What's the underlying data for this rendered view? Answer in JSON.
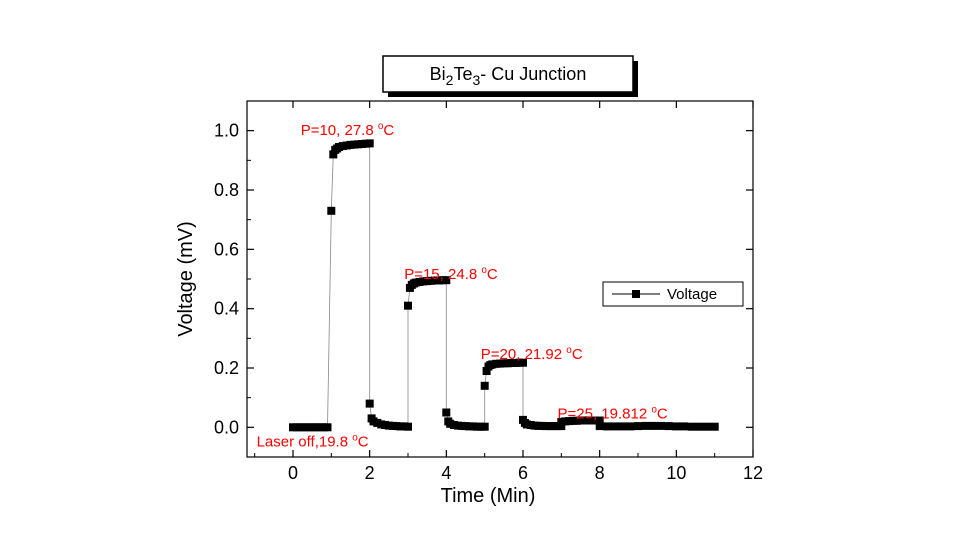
{
  "chart_data": {
    "type": "scatter",
    "title_parts": {
      "a": "Bi",
      "a_sub": "2",
      "b": "Te",
      "b_sub": "3",
      "c": "- Cu Junction"
    },
    "xlabel": "Time (Min)",
    "ylabel": "Voltage (mV)",
    "xlim": [
      -1.2,
      12
    ],
    "ylim": [
      -0.1,
      1.1
    ],
    "x_ticks": [
      0,
      2,
      4,
      6,
      8,
      10,
      12
    ],
    "x_tick_labels": [
      "0",
      "2",
      "4",
      "6",
      "8",
      "10",
      "12"
    ],
    "y_ticks": [
      0.0,
      0.2,
      0.4,
      0.6,
      0.8,
      1.0
    ],
    "y_tick_labels": [
      "0.0",
      "0.2",
      "0.4",
      "0.6",
      "0.8",
      "1.0"
    ],
    "grid": false,
    "legend_position": "right",
    "series": [
      {
        "name": "Voltage",
        "color": "#000000",
        "points": [
          [
            0.0,
            0.0
          ],
          [
            0.1,
            0.0
          ],
          [
            0.2,
            0.0
          ],
          [
            0.3,
            0.0
          ],
          [
            0.4,
            0.0
          ],
          [
            0.5,
            0.0
          ],
          [
            0.6,
            0.0
          ],
          [
            0.7,
            0.0
          ],
          [
            0.8,
            0.0
          ],
          [
            0.9,
            0.0
          ],
          [
            1.0,
            0.73
          ],
          [
            1.05,
            0.92
          ],
          [
            1.1,
            0.935
          ],
          [
            1.15,
            0.94
          ],
          [
            1.2,
            0.945
          ],
          [
            1.3,
            0.948
          ],
          [
            1.4,
            0.95
          ],
          [
            1.5,
            0.952
          ],
          [
            1.6,
            0.953
          ],
          [
            1.7,
            0.954
          ],
          [
            1.8,
            0.955
          ],
          [
            1.9,
            0.956
          ],
          [
            2.0,
            0.957
          ],
          [
            2.0,
            0.08
          ],
          [
            2.05,
            0.03
          ],
          [
            2.1,
            0.02
          ],
          [
            2.2,
            0.015
          ],
          [
            2.3,
            0.01
          ],
          [
            2.4,
            0.008
          ],
          [
            2.5,
            0.006
          ],
          [
            2.6,
            0.005
          ],
          [
            2.7,
            0.004
          ],
          [
            2.8,
            0.003
          ],
          [
            2.9,
            0.003
          ],
          [
            3.0,
            0.002
          ],
          [
            3.0,
            0.41
          ],
          [
            3.05,
            0.47
          ],
          [
            3.1,
            0.48
          ],
          [
            3.15,
            0.485
          ],
          [
            3.2,
            0.488
          ],
          [
            3.3,
            0.49
          ],
          [
            3.4,
            0.492
          ],
          [
            3.5,
            0.493
          ],
          [
            3.6,
            0.494
          ],
          [
            3.7,
            0.495
          ],
          [
            3.8,
            0.495
          ],
          [
            3.9,
            0.496
          ],
          [
            4.0,
            0.496
          ],
          [
            4.0,
            0.05
          ],
          [
            4.05,
            0.02
          ],
          [
            4.1,
            0.012
          ],
          [
            4.2,
            0.008
          ],
          [
            4.3,
            0.006
          ],
          [
            4.4,
            0.005
          ],
          [
            4.5,
            0.004
          ],
          [
            4.6,
            0.003
          ],
          [
            4.7,
            0.003
          ],
          [
            4.8,
            0.002
          ],
          [
            4.9,
            0.002
          ],
          [
            5.0,
            0.002
          ],
          [
            5.0,
            0.14
          ],
          [
            5.05,
            0.19
          ],
          [
            5.1,
            0.205
          ],
          [
            5.15,
            0.21
          ],
          [
            5.2,
            0.212
          ],
          [
            5.3,
            0.214
          ],
          [
            5.4,
            0.215
          ],
          [
            5.5,
            0.216
          ],
          [
            5.6,
            0.216
          ],
          [
            5.7,
            0.217
          ],
          [
            5.8,
            0.217
          ],
          [
            5.9,
            0.218
          ],
          [
            6.0,
            0.218
          ],
          [
            6.0,
            0.025
          ],
          [
            6.05,
            0.015
          ],
          [
            6.1,
            0.01
          ],
          [
            6.2,
            0.008
          ],
          [
            6.3,
            0.006
          ],
          [
            6.4,
            0.005
          ],
          [
            6.5,
            0.005
          ],
          [
            6.6,
            0.004
          ],
          [
            6.7,
            0.004
          ],
          [
            6.8,
            0.004
          ],
          [
            6.9,
            0.004
          ],
          [
            7.0,
            0.004
          ],
          [
            7.0,
            0.018
          ],
          [
            7.1,
            0.02
          ],
          [
            7.2,
            0.021
          ],
          [
            7.3,
            0.022
          ],
          [
            7.4,
            0.022
          ],
          [
            7.5,
            0.023
          ],
          [
            7.6,
            0.023
          ],
          [
            7.7,
            0.023
          ],
          [
            7.8,
            0.023
          ],
          [
            7.9,
            0.023
          ],
          [
            8.0,
            0.023
          ],
          [
            8.0,
            0.004
          ],
          [
            8.2,
            0.003
          ],
          [
            8.4,
            0.003
          ],
          [
            8.6,
            0.003
          ],
          [
            8.8,
            0.003
          ],
          [
            9.0,
            0.004
          ],
          [
            9.2,
            0.005
          ],
          [
            9.4,
            0.005
          ],
          [
            9.6,
            0.005
          ],
          [
            9.8,
            0.004
          ],
          [
            10.0,
            0.003
          ],
          [
            10.2,
            0.003
          ],
          [
            10.4,
            0.002
          ],
          [
            10.6,
            0.002
          ],
          [
            10.8,
            0.002
          ],
          [
            11.0,
            0.002
          ]
        ]
      }
    ],
    "annotations": [
      {
        "text": "P=10, 27.8 ",
        "sup": "o",
        "unit": "C",
        "x": 0.2,
        "y": 0.985
      },
      {
        "text": "P=15, 24.8 ",
        "sup": "o",
        "unit": "C",
        "x": 2.9,
        "y": 0.5
      },
      {
        "text": "P=20, 21.92 ",
        "sup": "o",
        "unit": "C",
        "x": 4.9,
        "y": 0.23
      },
      {
        "text": "P=25, 19.812 ",
        "sup": "o",
        "unit": "C",
        "x": 6.9,
        "y": 0.03
      },
      {
        "text": "Laser off,19.8 ",
        "sup": "o",
        "unit": "C",
        "x": -0.95,
        "y": -0.065
      }
    ],
    "annotation_color": "#ff0000"
  }
}
